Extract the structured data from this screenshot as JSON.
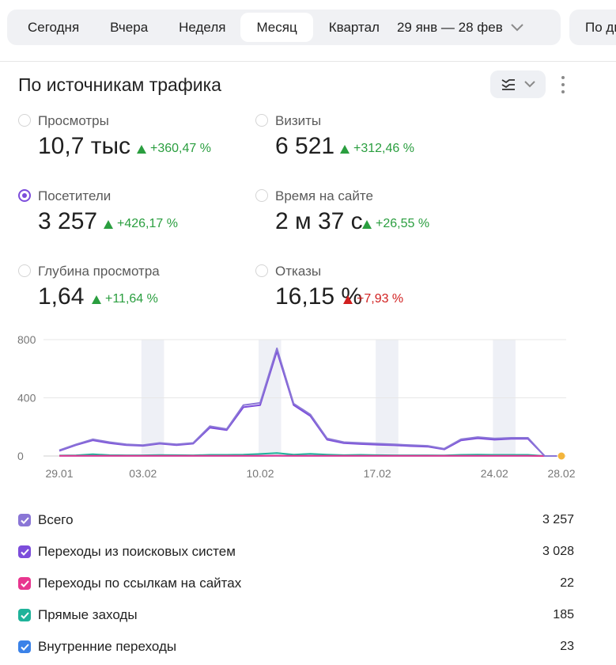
{
  "period_bar": {
    "tabs": [
      {
        "label": "Сегодня",
        "active": false
      },
      {
        "label": "Вчера",
        "active": false
      },
      {
        "label": "Неделя",
        "active": false
      },
      {
        "label": "Месяц",
        "active": true
      },
      {
        "label": "Квартал",
        "active": false
      }
    ],
    "range": "29 янв — 28 фев",
    "group_label": "По дн"
  },
  "card": {
    "title": "По источникам трафика"
  },
  "metrics": [
    {
      "label": "Просмотры",
      "value": "10,7 тыс",
      "delta": "+360,47 %",
      "trend": "up-good",
      "selected": false
    },
    {
      "label": "Визиты",
      "value": "6 521",
      "delta": "+312,46 %",
      "trend": "up-good",
      "selected": false
    },
    {
      "label": "Посетители",
      "value": "3 257",
      "delta": "+426,17 %",
      "trend": "up-good",
      "selected": true
    },
    {
      "label": "Время на сайте",
      "value": "2 м 37 с",
      "delta": "+26,55 %",
      "trend": "up-good",
      "selected": false
    },
    {
      "label": "Глубина просмотра",
      "value": "1,64",
      "delta": "+11,64 %",
      "trend": "up-good",
      "selected": false
    },
    {
      "label": "Отказы",
      "value": "16,15 %",
      "delta": "+7,93 %",
      "trend": "up-bad",
      "selected": false
    }
  ],
  "colors": {
    "accent": "#7c4ddb",
    "positive": "#2a9e3f",
    "negative": "#d11f1f",
    "weekend_band": "#eef0f6"
  },
  "chart_data": {
    "type": "line",
    "x": [
      "29.01",
      "30.01",
      "31.01",
      "01.02",
      "02.02",
      "03.02",
      "04.02",
      "05.02",
      "06.02",
      "07.02",
      "08.02",
      "09.02",
      "10.02",
      "11.02",
      "12.02",
      "13.02",
      "14.02",
      "15.02",
      "16.02",
      "17.02",
      "18.02",
      "19.02",
      "20.02",
      "21.02",
      "22.02",
      "23.02",
      "24.02",
      "25.02",
      "26.02",
      "27.02",
      "28.02"
    ],
    "x_tick_labels": [
      "29.01",
      "03.02",
      "10.02",
      "17.02",
      "24.02",
      "28.02"
    ],
    "y_ticks": [
      0,
      400,
      800
    ],
    "ylim": [
      0,
      800
    ],
    "weekend_bands": [
      [
        "03.02",
        "04.02"
      ],
      [
        "10.02",
        "11.02"
      ],
      [
        "17.02",
        "18.02"
      ],
      [
        "24.02",
        "25.02"
      ]
    ],
    "series": [
      {
        "name": "Всего",
        "color": "#8a76d6",
        "values": [
          40,
          80,
          115,
          95,
          80,
          75,
          90,
          80,
          90,
          205,
          185,
          350,
          365,
          740,
          360,
          285,
          120,
          95,
          90,
          85,
          80,
          75,
          70,
          50,
          115,
          130,
          120,
          125,
          125,
          0,
          0
        ]
      },
      {
        "name": "Переходы из поисковых систем",
        "color": "#7c4ddb",
        "values": [
          35,
          75,
          108,
          88,
          75,
          70,
          85,
          75,
          85,
          195,
          178,
          335,
          350,
          720,
          350,
          275,
          112,
          88,
          82,
          78,
          74,
          68,
          64,
          45,
          108,
          122,
          112,
          118,
          118,
          0,
          0
        ]
      },
      {
        "name": "Переходы по ссылкам на сайтах",
        "color": "#e8368f",
        "values": [
          1,
          1,
          1,
          1,
          1,
          1,
          1,
          1,
          1,
          1,
          1,
          1,
          1,
          2,
          1,
          1,
          1,
          1,
          1,
          1,
          1,
          1,
          1,
          1,
          1,
          1,
          1,
          1,
          1,
          0,
          0
        ]
      },
      {
        "name": "Прямые заходы",
        "color": "#1fb39a",
        "values": [
          3,
          5,
          12,
          6,
          5,
          5,
          7,
          6,
          5,
          8,
          8,
          10,
          14,
          20,
          10,
          15,
          10,
          6,
          8,
          6,
          5,
          5,
          5,
          4,
          8,
          10,
          8,
          8,
          8,
          0,
          0
        ]
      },
      {
        "name": "Внутренние переходы",
        "color": "#3b82e8",
        "values": [
          1,
          1,
          1,
          1,
          1,
          1,
          1,
          1,
          1,
          1,
          1,
          1,
          1,
          1,
          1,
          1,
          1,
          1,
          1,
          1,
          1,
          1,
          1,
          1,
          1,
          1,
          1,
          1,
          1,
          0,
          0
        ]
      }
    ]
  },
  "legend": [
    {
      "name": "Всего",
      "value": "3 257",
      "color": "#8a76d6"
    },
    {
      "name": "Переходы из поисковых систем",
      "value": "3 028",
      "color": "#7c4ddb"
    },
    {
      "name": "Переходы по ссылкам на сайтах",
      "value": "22",
      "color": "#e8368f"
    },
    {
      "name": "Прямые заходы",
      "value": "185",
      "color": "#1fb39a"
    },
    {
      "name": "Внутренние переходы",
      "value": "23",
      "color": "#3b82e8"
    }
  ]
}
